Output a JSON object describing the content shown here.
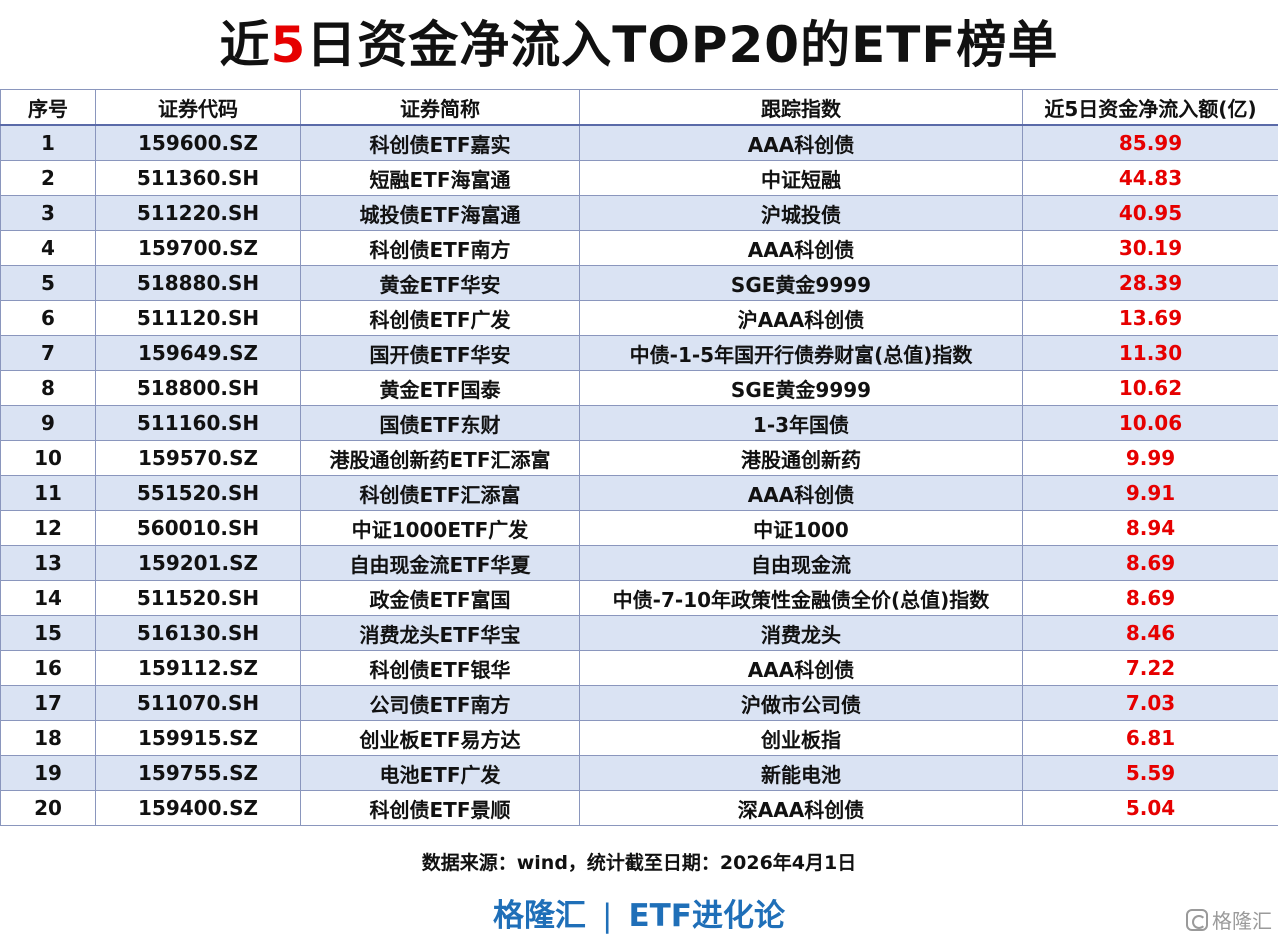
{
  "title": {
    "prefix": "近",
    "highlight": "5",
    "suffix": "日资金净流入TOP20的ETF榜单"
  },
  "colors": {
    "highlight_red": "#e60000",
    "row_band": "#dae3f3",
    "brand_blue": "#1f6fb8"
  },
  "table": {
    "headers": [
      "序号",
      "证券代码",
      "证券简称",
      "跟踪指数",
      "近5日资金净流入额(亿)"
    ],
    "rows": [
      [
        "1",
        "159600.SZ",
        "科创债ETF嘉实",
        "AAA科创债",
        "85.99"
      ],
      [
        "2",
        "511360.SH",
        "短融ETF海富通",
        "中证短融",
        "44.83"
      ],
      [
        "3",
        "511220.SH",
        "城投债ETF海富通",
        "沪城投债",
        "40.95"
      ],
      [
        "4",
        "159700.SZ",
        "科创债ETF南方",
        "AAA科创债",
        "30.19"
      ],
      [
        "5",
        "518880.SH",
        "黄金ETF华安",
        "SGE黄金9999",
        "28.39"
      ],
      [
        "6",
        "511120.SH",
        "科创债ETF广发",
        "沪AAA科创债",
        "13.69"
      ],
      [
        "7",
        "159649.SZ",
        "国开债ETF华安",
        "中债-1-5年国开行债券财富(总值)指数",
        "11.30"
      ],
      [
        "8",
        "518800.SH",
        "黄金ETF国泰",
        "SGE黄金9999",
        "10.62"
      ],
      [
        "9",
        "511160.SH",
        "国债ETF东财",
        "1-3年国债",
        "10.06"
      ],
      [
        "10",
        "159570.SZ",
        "港股通创新药ETF汇添富",
        "港股通创新药",
        "9.99"
      ],
      [
        "11",
        "551520.SH",
        "科创债ETF汇添富",
        "AAA科创债",
        "9.91"
      ],
      [
        "12",
        "560010.SH",
        "中证1000ETF广发",
        "中证1000",
        "8.94"
      ],
      [
        "13",
        "159201.SZ",
        "自由现金流ETF华夏",
        "自由现金流",
        "8.69"
      ],
      [
        "14",
        "511520.SH",
        "政金债ETF富国",
        "中债-7-10年政策性金融债全价(总值)指数",
        "8.69"
      ],
      [
        "15",
        "516130.SH",
        "消费龙头ETF华宝",
        "消费龙头",
        "8.46"
      ],
      [
        "16",
        "159112.SZ",
        "科创债ETF银华",
        "AAA科创债",
        "7.22"
      ],
      [
        "17",
        "511070.SH",
        "公司债ETF南方",
        "沪做市公司债",
        "7.03"
      ],
      [
        "18",
        "159915.SZ",
        "创业板ETF易方达",
        "创业板指",
        "6.81"
      ],
      [
        "19",
        "159755.SZ",
        "电池ETF广发",
        "新能电池",
        "5.59"
      ],
      [
        "20",
        "159400.SZ",
        "科创债ETF景顺",
        "深AAA科创债",
        "5.04"
      ]
    ]
  },
  "footer": {
    "source": "数据来源：wind，统计截至日期：2026年4月1日"
  },
  "brand": {
    "left": "格隆汇",
    "separator": "|",
    "right": "ETF进化论"
  },
  "watermark": {
    "text": "格隆汇",
    "icon": "gelonghui-logo-icon"
  }
}
